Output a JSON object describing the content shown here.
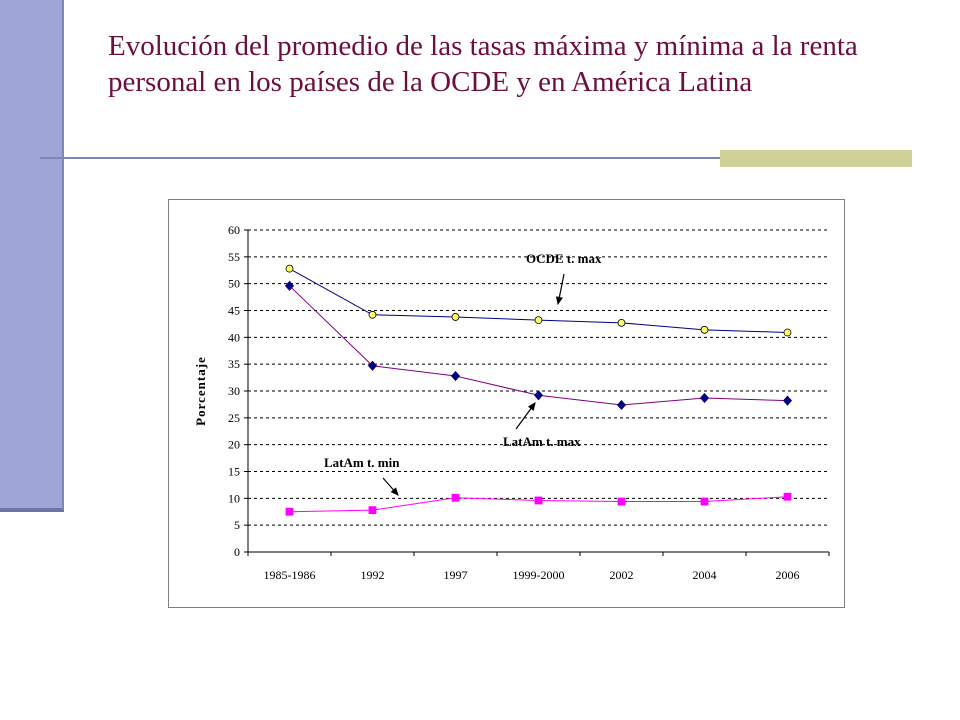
{
  "slide": {
    "title": "Evolución del promedio de las tasas máxima y mínima a la renta personal en los países de la OCDE y en América Latina"
  },
  "colors": {
    "title": "#6d0f3e",
    "side_bar": "#9ea6d6",
    "accent_block": "#cfcf98",
    "ocde_line": "#000080",
    "ocde_marker": "#ffff66",
    "latam_max_line": "#800080",
    "latam_max_marker": "#000080",
    "latam_min_line": "#ff00ff",
    "latam_min_marker": "#ff00ff"
  },
  "chart_data": {
    "type": "line",
    "title": "",
    "xlabel": "",
    "ylabel": "Porcentaje",
    "ylim": [
      0,
      60
    ],
    "yticks": [
      0,
      5,
      10,
      15,
      20,
      25,
      30,
      35,
      40,
      45,
      50,
      55,
      60
    ],
    "categories": [
      "1985-1986",
      "1992",
      "1997",
      "1999-2000",
      "2002",
      "2004",
      "2006"
    ],
    "grid": "horizontal dashed",
    "legend": "none",
    "series": [
      {
        "name": "OCDE t. max",
        "marker": "circle",
        "values": [
          52.8,
          44.2,
          43.8,
          43.2,
          42.7,
          41.4,
          40.9
        ]
      },
      {
        "name": "LatAm t. max",
        "marker": "diamond",
        "values": [
          49.6,
          34.7,
          32.8,
          29.2,
          27.4,
          28.7,
          28.2
        ]
      },
      {
        "name": "LatAm t. min",
        "marker": "square",
        "values": [
          7.5,
          7.8,
          10.1,
          9.6,
          9.4,
          9.4,
          10.3
        ]
      }
    ],
    "annotations": [
      {
        "text": "OCDE t. max",
        "series": 0
      },
      {
        "text": "LatAm t. max",
        "series": 1
      },
      {
        "text": "LatAm t. min",
        "series": 2
      }
    ]
  }
}
